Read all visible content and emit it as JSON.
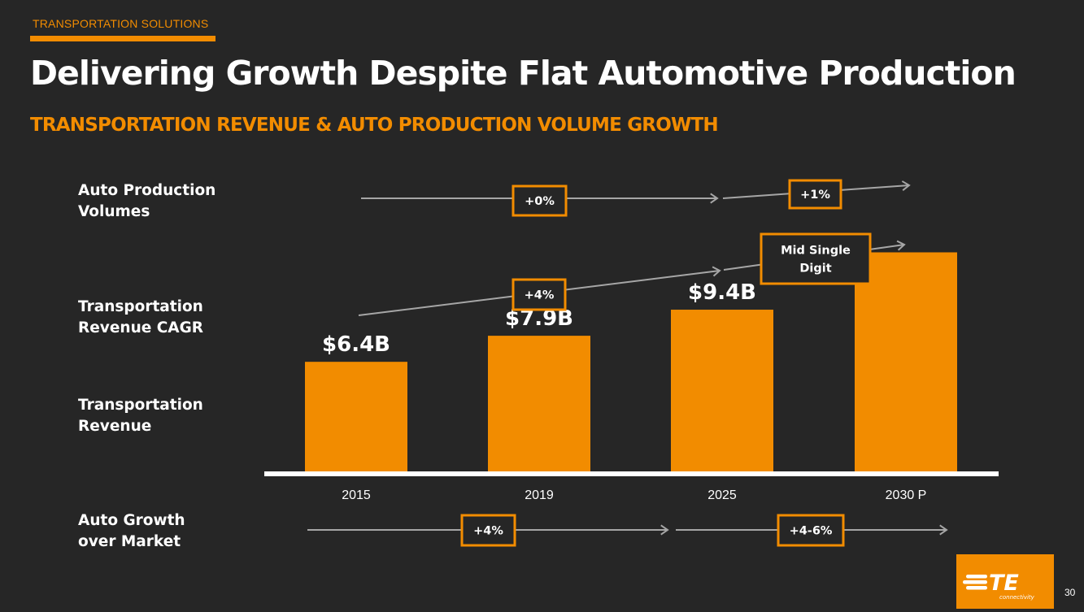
{
  "header": {
    "section_label": "TRANSPORTATION SOLUTIONS",
    "title": "Delivering Growth Despite Flat Automotive Production",
    "subtitle": "TRANSPORTATION REVENUE & AUTO PRODUCTION VOLUME GROWTH"
  },
  "row_labels": {
    "auto_production_line1": "Auto Production",
    "auto_production_line2": "Volumes",
    "revenue_cagr_line1": "Transportation",
    "revenue_cagr_line2": "Revenue CAGR",
    "revenue_line1": "Transportation",
    "revenue_line2": "Revenue",
    "growth_over_market_line1": "Auto Growth",
    "growth_over_market_line2": "over Market"
  },
  "chart_data": {
    "type": "bar",
    "categories": [
      "2015",
      "2019",
      "2025",
      "2030 P"
    ],
    "values": [
      6.4,
      7.9,
      9.4,
      12.7
    ],
    "data_labels": [
      "$6.4B",
      "$7.9B",
      "$9.4B",
      ""
    ],
    "ylim": [
      0,
      14.5
    ],
    "bar_color": "#f28c00",
    "annotations": {
      "auto_production_volumes": [
        "+0%",
        "+1%"
      ],
      "revenue_cagr": [
        "+4%",
        "Mid Single Digit"
      ],
      "auto_growth_over_market": [
        "+4%",
        "+4-6%"
      ]
    }
  },
  "footer": {
    "page_number": "30",
    "logo_text": "TE",
    "logo_subtext": "connectivity"
  },
  "colors": {
    "background": "#262626",
    "accent": "#f28c00",
    "text": "#ffffff",
    "arrow": "#a6a6a6"
  }
}
